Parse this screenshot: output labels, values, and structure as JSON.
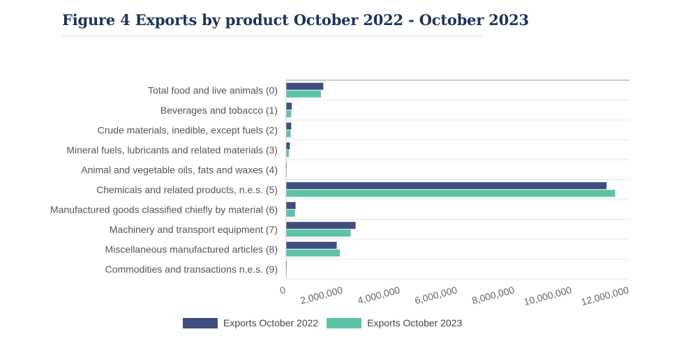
{
  "title": "Figure 4 Exports by product October 2022 - October 2023",
  "colors": {
    "series_2022": "#3e4f7e",
    "series_2023": "#5cc4a6"
  },
  "chart_data": {
    "type": "bar",
    "orientation": "horizontal",
    "categories": [
      "Total food and live animals (0)",
      "Beverages and tobacco (1)",
      "Crude materials, inedible, except fuels (2)",
      "Mineral fuels, lubricants and related materials (3)",
      "Animal and vegetable oils, fats and waxes (4)",
      "Chemicals and related products, n.e.s. (5)",
      "Manufactured goods classified chiefly by material (6)",
      "Machinery and transport equipment (7)",
      "Miscellaneous manufactured articles (8)",
      "Commodities and transactions n.e.s. (9)"
    ],
    "series": [
      {
        "name": "Exports October 2022",
        "color": "#3e4f7e",
        "values": [
          1300000,
          200000,
          180000,
          130000,
          20000,
          11200000,
          330000,
          2430000,
          1770000,
          20000
        ]
      },
      {
        "name": "Exports October 2023",
        "color": "#5cc4a6",
        "values": [
          1220000,
          180000,
          160000,
          100000,
          20000,
          11500000,
          310000,
          2260000,
          1880000,
          20000
        ]
      }
    ],
    "xlim": [
      0,
      12000000
    ],
    "xticks": [
      "0",
      "2,000,000",
      "4,000,000",
      "6,000,000",
      "8,000,000",
      "10,000,000",
      "12,000,000"
    ],
    "xlabel": "",
    "ylabel": "",
    "grid": true,
    "legend_position": "bottom"
  }
}
